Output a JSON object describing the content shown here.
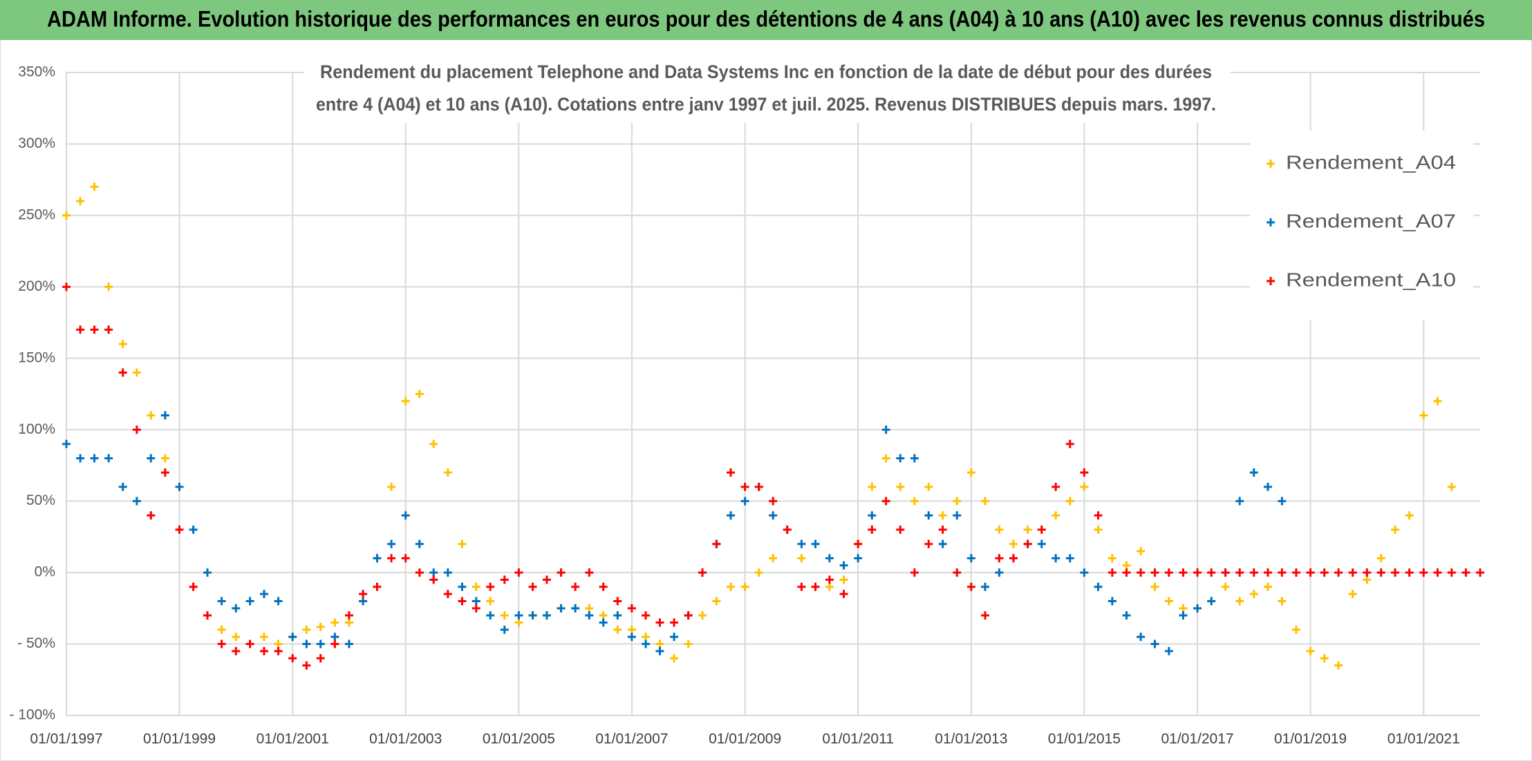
{
  "chart_data": {
    "type": "scatter",
    "title": "ADAM Informe. Evolution historique des performances en euros pour des détentions de 4 ans (A04) à 10 ans (A10) avec les revenus connus distribués",
    "subtitle": [
      "Rendement du placement Telephone and Data Systems Inc en fonction de la date de début pour des durées",
      "entre 4 (A04) et 10 ans (A10). Cotations entre janv 1997 et juil. 2025. Revenus DISTRIBUES depuis mars. 1997."
    ],
    "x": [
      "01/01/1997",
      "01/04/1997",
      "01/07/1997",
      "01/10/1997",
      "01/01/1998",
      "01/04/1998",
      "01/07/1998",
      "01/10/1998",
      "01/01/1999",
      "01/04/1999",
      "01/07/1999",
      "01/10/1999",
      "01/01/2000",
      "01/04/2000",
      "01/07/2000",
      "01/10/2000",
      "01/01/2001",
      "01/04/2001",
      "01/07/2001",
      "01/10/2001",
      "01/01/2002",
      "01/04/2002",
      "01/07/2002",
      "01/10/2002",
      "01/01/2003",
      "01/04/2003",
      "01/07/2003",
      "01/10/2003",
      "01/01/2004",
      "01/04/2004",
      "01/07/2004",
      "01/10/2004",
      "01/01/2005",
      "01/04/2005",
      "01/07/2005",
      "01/10/2005",
      "01/01/2006",
      "01/04/2006",
      "01/07/2006",
      "01/10/2006",
      "01/01/2007",
      "01/04/2007",
      "01/07/2007",
      "01/10/2007",
      "01/01/2008",
      "01/04/2008",
      "01/07/2008",
      "01/10/2008",
      "01/01/2009",
      "01/04/2009",
      "01/07/2009",
      "01/10/2009",
      "01/01/2010",
      "01/04/2010",
      "01/07/2010",
      "01/10/2010",
      "01/01/2011",
      "01/04/2011",
      "01/07/2011",
      "01/10/2011",
      "01/01/2012",
      "01/04/2012",
      "01/07/2012",
      "01/10/2012",
      "01/01/2013",
      "01/04/2013",
      "01/07/2013",
      "01/10/2013",
      "01/01/2014",
      "01/04/2014",
      "01/07/2014",
      "01/10/2014",
      "01/01/2015",
      "01/04/2015",
      "01/07/2015",
      "01/10/2015",
      "01/01/2016",
      "01/04/2016",
      "01/07/2016",
      "01/10/2016",
      "01/01/2017",
      "01/04/2017",
      "01/07/2017",
      "01/10/2017",
      "01/01/2018",
      "01/04/2018",
      "01/07/2018",
      "01/10/2018",
      "01/01/2019",
      "01/04/2019",
      "01/07/2019",
      "01/10/2019",
      "01/01/2020",
      "01/04/2020",
      "01/07/2020",
      "01/10/2020",
      "01/01/2021",
      "01/04/2021",
      "01/07/2021",
      "01/10/2021",
      "01/01/2022"
    ],
    "series": [
      {
        "name": "Rendement_A04",
        "color": "#FFC000",
        "values": [
          250,
          260,
          270,
          200,
          160,
          140,
          110,
          80,
          60,
          -10,
          -30,
          -40,
          -45,
          -50,
          -45,
          -50,
          -45,
          -40,
          -38,
          -35,
          -35,
          -20,
          10,
          60,
          120,
          125,
          90,
          70,
          20,
          -10,
          -20,
          -30,
          -35,
          -30,
          -30,
          -25,
          -25,
          -25,
          -30,
          -40,
          -40,
          -45,
          -50,
          -60,
          -50,
          -30,
          -20,
          -10,
          -10,
          0,
          10,
          30,
          10,
          -10,
          -10,
          -5,
          20,
          60,
          80,
          60,
          50,
          60,
          40,
          50,
          70,
          50,
          30,
          20,
          30,
          30,
          40,
          50,
          60,
          30,
          10,
          5,
          15,
          -10,
          -20,
          -25,
          -25,
          -20,
          -10,
          -20,
          -15,
          -10,
          -20,
          -40,
          -55,
          -60,
          -65,
          -15,
          -5,
          10,
          30,
          40,
          110,
          120,
          60,
          null,
          null
        ]
      },
      {
        "name": "Rendement_A07",
        "color": "#0070C0",
        "values": [
          90,
          80,
          80,
          80,
          60,
          50,
          80,
          110,
          60,
          30,
          0,
          -20,
          -25,
          -20,
          -15,
          -20,
          -45,
          -50,
          -50,
          -45,
          -50,
          -20,
          10,
          20,
          40,
          20,
          0,
          0,
          -10,
          -20,
          -30,
          -40,
          -30,
          -30,
          -30,
          -25,
          -25,
          -30,
          -35,
          -30,
          -45,
          -50,
          -55,
          -45,
          -30,
          0,
          20,
          40,
          50,
          60,
          40,
          30,
          20,
          20,
          10,
          5,
          10,
          40,
          100,
          80,
          80,
          40,
          20,
          40,
          10,
          -10,
          0,
          10,
          20,
          20,
          10,
          10,
          0,
          -10,
          -20,
          -30,
          -45,
          -50,
          -55,
          -30,
          -25,
          -20,
          0,
          50,
          70,
          60,
          50,
          null,
          null,
          null,
          null,
          null,
          null,
          null,
          null,
          null,
          null,
          null,
          null,
          null,
          null
        ]
      },
      {
        "name": "Rendement_A10",
        "color": "#FF0000",
        "values": [
          200,
          170,
          170,
          170,
          140,
          100,
          40,
          70,
          30,
          -10,
          -30,
          -50,
          -55,
          -50,
          -55,
          -55,
          -60,
          -65,
          -60,
          -50,
          -30,
          -15,
          -10,
          10,
          10,
          0,
          -5,
          -15,
          -20,
          -25,
          -10,
          -5,
          0,
          -10,
          -5,
          0,
          -10,
          0,
          -10,
          -20,
          -25,
          -30,
          -35,
          -35,
          -30,
          0,
          20,
          70,
          60,
          60,
          50,
          30,
          -10,
          -10,
          -5,
          -15,
          20,
          30,
          50,
          30,
          0,
          20,
          30,
          0,
          -10,
          -30,
          10,
          10,
          20,
          30,
          60,
          90,
          70,
          40,
          0,
          0,
          0,
          0,
          0,
          0,
          0,
          0,
          0,
          0,
          0,
          0,
          0,
          0,
          0,
          0,
          0,
          0,
          0,
          0,
          0,
          0,
          0,
          0,
          0,
          0,
          0
        ]
      }
    ],
    "xlim": [
      "01/01/1997",
      "01/01/2022"
    ],
    "xticks": [
      "01/01/1997",
      "01/01/1999",
      "01/01/2001",
      "01/01/2003",
      "01/01/2005",
      "01/01/2007",
      "01/01/2009",
      "01/01/2011",
      "01/01/2013",
      "01/01/2015",
      "01/01/2017",
      "01/01/2019",
      "01/01/2021"
    ],
    "ylim": [
      -100,
      350
    ],
    "yticks": [
      {
        "value": 350,
        "label": "350%"
      },
      {
        "value": 300,
        "label": "300%"
      },
      {
        "value": 250,
        "label": "250%"
      },
      {
        "value": 200,
        "label": "200%"
      },
      {
        "value": 150,
        "label": "150%"
      },
      {
        "value": 100,
        "label": "100%"
      },
      {
        "value": 50,
        "label": "50%"
      },
      {
        "value": 0,
        "label": "0%"
      },
      {
        "value": -50,
        "label": "- 50%"
      },
      {
        "value": -100,
        "label": "- 100%"
      }
    ],
    "grid": true,
    "legend": "upper right"
  }
}
